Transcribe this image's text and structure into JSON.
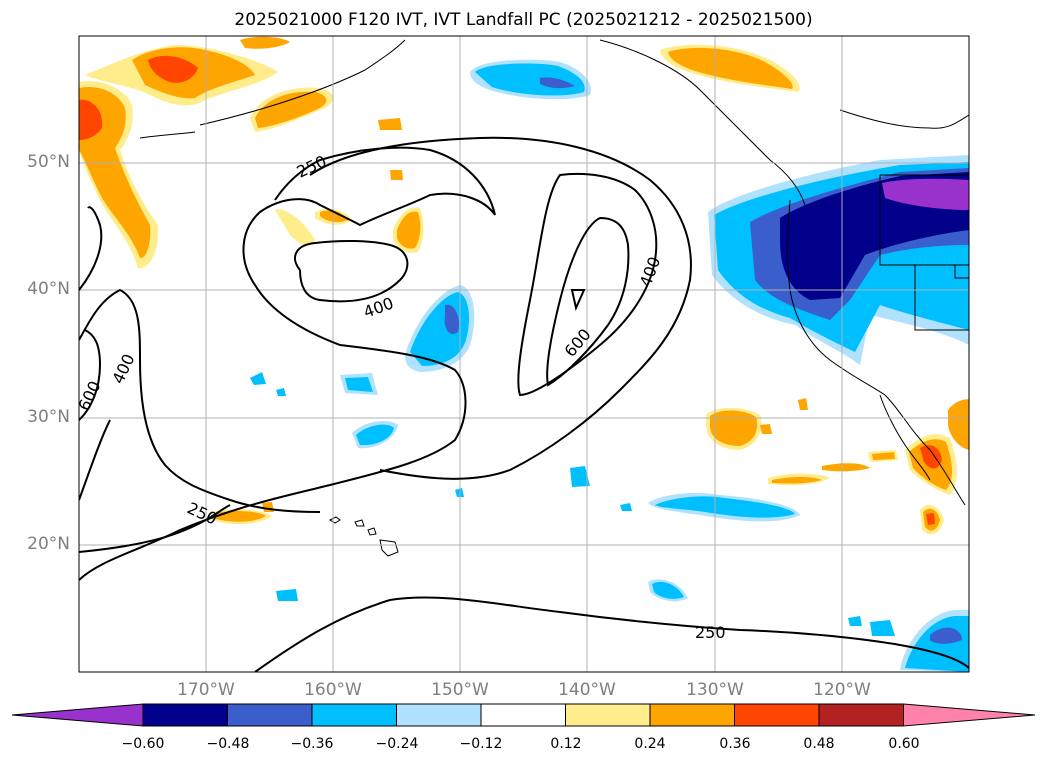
{
  "title": "2025021000 F120 IVT, IVT Landfall PC (2025021212 - 2025021500)",
  "map_extent": {
    "lon_min": -180,
    "lon_max": -110,
    "lat_min": 10,
    "lat_max": 60
  },
  "lat_labels": [
    {
      "value": 50,
      "text": "50°N"
    },
    {
      "value": 40,
      "text": "40°N"
    },
    {
      "value": 30,
      "text": "30°N"
    },
    {
      "value": 20,
      "text": "20°N"
    }
  ],
  "lon_labels": [
    {
      "value": -170,
      "text": "170°W"
    },
    {
      "value": -160,
      "text": "160°W"
    },
    {
      "value": -150,
      "text": "150°W"
    },
    {
      "value": -140,
      "text": "140°W"
    },
    {
      "value": -130,
      "text": "130°W"
    },
    {
      "value": -120,
      "text": "120°W"
    }
  ],
  "contour_labels": [
    {
      "text": "250"
    },
    {
      "text": "400"
    },
    {
      "text": "600"
    },
    {
      "text": "400"
    },
    {
      "text": "600"
    },
    {
      "text": "400"
    },
    {
      "text": "250"
    },
    {
      "text": "250"
    }
  ],
  "colorbar": {
    "ticks": [
      "−0.60",
      "−0.48",
      "−0.36",
      "−0.24",
      "−0.12",
      "0.12",
      "0.24",
      "0.36",
      "0.48",
      "0.60"
    ],
    "colors": [
      "#9932cc",
      "#00008b",
      "#3a5fcd",
      "#00bfff",
      "#b0e2ff",
      "#ffffff",
      "#ffec8b",
      "#ffa500",
      "#ff4500",
      "#b22222",
      "#ff82ab"
    ]
  }
}
